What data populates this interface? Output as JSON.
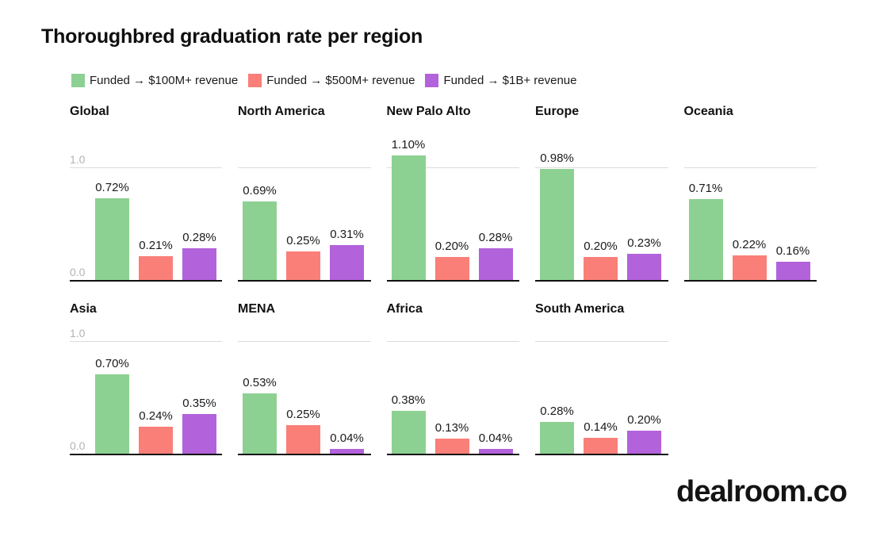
{
  "page": {
    "title": "Thoroughbred graduation rate per region",
    "logo_text": "dealroom.co"
  },
  "legend": {
    "items": [
      {
        "label": "Funded → $100M+ revenue",
        "color": "#8CD191"
      },
      {
        "label": "Funded → $500M+ revenue",
        "color": "#F97F78"
      },
      {
        "label": "Funded → $1B+ revenue",
        "color": "#B262DB"
      }
    ]
  },
  "chart_data": {
    "type": "bar",
    "title": "Thoroughbred graduation rate per region",
    "unit": "%",
    "series": [
      "Funded → $100M+ revenue",
      "Funded → $500M+ revenue",
      "Funded → $1B+ revenue"
    ],
    "series_colors": [
      "#8CD191",
      "#F97F78",
      "#B262DB"
    ],
    "y_ticks": [
      "1.0",
      "0.0"
    ],
    "gridline_at": 1.0,
    "ylim": [
      0,
      1.4
    ],
    "layout": "small-multiples, 5 columns top row, 4 bottom row; axis tick labels only on first column panels",
    "panels": [
      {
        "region": "Global",
        "values": [
          0.72,
          0.21,
          0.28
        ],
        "labels": [
          "0.72%",
          "0.21%",
          "0.28%"
        ]
      },
      {
        "region": "North America",
        "values": [
          0.69,
          0.25,
          0.31
        ],
        "labels": [
          "0.69%",
          "0.25%",
          "0.31%"
        ]
      },
      {
        "region": "New Palo Alto",
        "values": [
          1.1,
          0.2,
          0.28
        ],
        "labels": [
          "1.10%",
          "0.20%",
          "0.28%"
        ]
      },
      {
        "region": "Europe",
        "values": [
          0.98,
          0.2,
          0.23
        ],
        "labels": [
          "0.98%",
          "0.20%",
          "0.23%"
        ]
      },
      {
        "region": "Oceania",
        "values": [
          0.71,
          0.22,
          0.16
        ],
        "labels": [
          "0.71%",
          "0.22%",
          "0.16%"
        ]
      },
      {
        "region": "Asia",
        "values": [
          0.7,
          0.24,
          0.35
        ],
        "labels": [
          "0.70%",
          "0.24%",
          "0.35%"
        ]
      },
      {
        "region": "MENA",
        "values": [
          0.53,
          0.25,
          0.04
        ],
        "labels": [
          "0.53%",
          "0.25%",
          "0.04%"
        ]
      },
      {
        "region": "Africa",
        "values": [
          0.38,
          0.13,
          0.04
        ],
        "labels": [
          "0.38%",
          "0.13%",
          "0.04%"
        ]
      },
      {
        "region": "South America",
        "values": [
          0.28,
          0.14,
          0.2
        ],
        "labels": [
          "0.28%",
          "0.14%",
          "0.20%"
        ]
      }
    ]
  }
}
